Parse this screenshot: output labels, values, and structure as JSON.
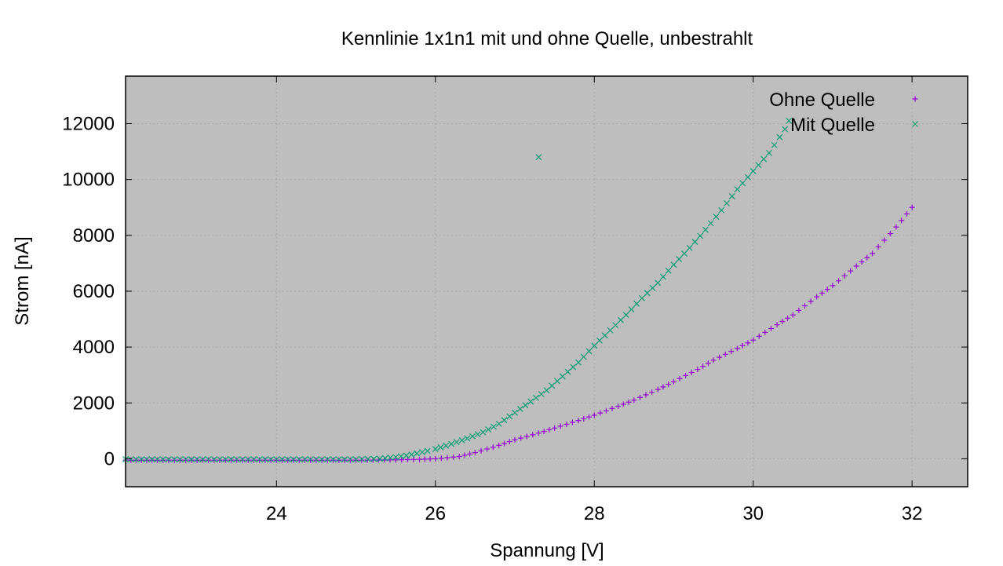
{
  "chart_data": {
    "type": "scatter",
    "title": "Kennlinie 1x1n1 mit und ohne Quelle, unbestrahlt",
    "xlabel": "Spannung [V]",
    "ylabel": "Strom [nA]",
    "xlim": [
      22.1,
      32.7
    ],
    "ylim": [
      -1000,
      13700
    ],
    "xticks": [
      24,
      26,
      28,
      30,
      32
    ],
    "yticks": [
      0,
      2000,
      4000,
      6000,
      8000,
      10000,
      12000
    ],
    "grid": true,
    "background": "#bebebe",
    "legend_position": "top-right",
    "series": [
      {
        "name": "Ohne Quelle",
        "marker": "+",
        "color": "#9400d3",
        "points": [
          [
            22.1,
            -50
          ],
          [
            22.5,
            -50
          ],
          [
            23.0,
            -50
          ],
          [
            23.5,
            -50
          ],
          [
            24.0,
            -50
          ],
          [
            24.5,
            -50
          ],
          [
            25.0,
            -50
          ],
          [
            25.5,
            -40
          ],
          [
            25.8,
            -20
          ],
          [
            26.0,
            0
          ],
          [
            26.3,
            80
          ],
          [
            26.5,
            220
          ],
          [
            26.8,
            480
          ],
          [
            27.0,
            680
          ],
          [
            27.3,
            920
          ],
          [
            27.5,
            1100
          ],
          [
            27.8,
            1370
          ],
          [
            28.0,
            1560
          ],
          [
            28.3,
            1880
          ],
          [
            28.5,
            2100
          ],
          [
            28.8,
            2480
          ],
          [
            29.0,
            2760
          ],
          [
            29.3,
            3200
          ],
          [
            29.5,
            3530
          ],
          [
            29.8,
            3950
          ],
          [
            30.0,
            4250
          ],
          [
            30.3,
            4800
          ],
          [
            30.5,
            5150
          ],
          [
            30.8,
            5800
          ],
          [
            31.0,
            6200
          ],
          [
            31.3,
            6900
          ],
          [
            31.5,
            7350
          ],
          [
            31.8,
            8300
          ],
          [
            32.0,
            9000
          ]
        ]
      },
      {
        "name": "Mit Quelle",
        "marker": "x",
        "color": "#009e73",
        "points": [
          [
            22.1,
            -20
          ],
          [
            22.5,
            -20
          ],
          [
            23.0,
            -20
          ],
          [
            23.5,
            -20
          ],
          [
            24.0,
            -20
          ],
          [
            24.5,
            -20
          ],
          [
            25.0,
            -20
          ],
          [
            25.3,
            0
          ],
          [
            25.5,
            60
          ],
          [
            25.7,
            150
          ],
          [
            25.9,
            280
          ],
          [
            26.0,
            350
          ],
          [
            26.2,
            530
          ],
          [
            26.4,
            730
          ],
          [
            26.6,
            950
          ],
          [
            26.8,
            1250
          ],
          [
            27.0,
            1650
          ],
          [
            27.2,
            2050
          ],
          [
            27.4,
            2450
          ],
          [
            27.6,
            2950
          ],
          [
            27.8,
            3450
          ],
          [
            28.0,
            4050
          ],
          [
            28.2,
            4600
          ],
          [
            28.4,
            5150
          ],
          [
            28.6,
            5750
          ],
          [
            28.8,
            6300
          ],
          [
            29.0,
            6950
          ],
          [
            29.2,
            7550
          ],
          [
            29.4,
            8200
          ],
          [
            29.6,
            8900
          ],
          [
            29.8,
            9650
          ],
          [
            30.0,
            10300
          ],
          [
            30.2,
            10950
          ],
          [
            30.4,
            11800
          ],
          [
            30.45,
            12100
          ],
          [
            27.3,
            10800
          ]
        ]
      }
    ]
  }
}
